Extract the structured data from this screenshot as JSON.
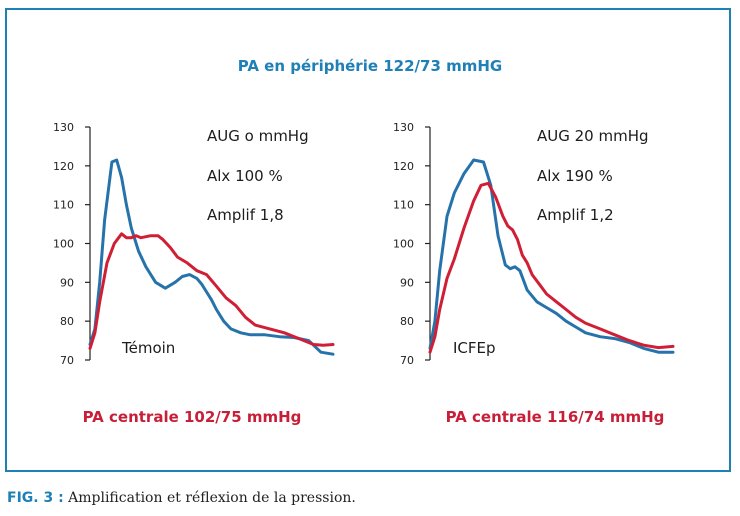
{
  "figure_title": "PA en périphérie 122/73 mmHG",
  "caption": {
    "fig_label": "FIG. 3 :",
    "text": "Amplification et réflexion de la pression."
  },
  "colors": {
    "frame": "#1f7fb7",
    "peripheral": "#2673ac",
    "central": "#d01f35"
  },
  "chart_data": [
    {
      "type": "line",
      "ylim": [
        70,
        130
      ],
      "yticks": [
        70,
        80,
        90,
        100,
        110,
        120,
        130
      ],
      "xlim": [
        0,
        100
      ],
      "annotations": [
        "AUG o mmHg",
        "Alx 100 %",
        "Amplif 1,8"
      ],
      "label": "Témoin",
      "bottom_label": "PA centrale 102/75 mmHg",
      "series": [
        {
          "key": "peripheral",
          "x": [
            0,
            2,
            4,
            6,
            9,
            11,
            13,
            15,
            17,
            20,
            23,
            27,
            31,
            35,
            38,
            41,
            44,
            46,
            48,
            50,
            52,
            55,
            58,
            62,
            66,
            72,
            78,
            84,
            90,
            95,
            100
          ],
          "y": [
            74,
            78,
            90,
            106,
            121,
            121.5,
            117,
            110,
            104,
            98,
            94,
            90,
            88.5,
            90,
            91.5,
            92,
            91,
            89.5,
            87.5,
            85.5,
            83,
            80,
            78,
            77,
            76.5,
            76.5,
            76,
            75.8,
            75,
            72,
            71.5
          ]
        },
        {
          "key": "central",
          "x": [
            0,
            2,
            4,
            7,
            10,
            13,
            15,
            17,
            19,
            21,
            25,
            28,
            30,
            33,
            36,
            40,
            44,
            48,
            52,
            56,
            60,
            64,
            68,
            74,
            80,
            86,
            92,
            96,
            100
          ],
          "y": [
            73,
            77,
            85,
            95,
            100,
            102.5,
            101.5,
            101.5,
            102,
            101.5,
            102,
            102,
            101,
            99,
            96.5,
            95,
            93,
            92,
            89,
            86,
            84,
            81,
            79,
            78,
            77,
            75.5,
            74,
            73.8,
            74
          ]
        }
      ]
    },
    {
      "type": "line",
      "ylim": [
        70,
        130
      ],
      "yticks": [
        70,
        80,
        90,
        100,
        110,
        120,
        130
      ],
      "xlim": [
        0,
        100
      ],
      "annotations": [
        "AUG 20 mmHg",
        "Alx 190 %",
        "Amplif 1,2"
      ],
      "label": "ICFEp",
      "bottom_label": "PA centrale 116/74 mmHg",
      "series": [
        {
          "key": "peripheral",
          "x": [
            0,
            2,
            4,
            7,
            10,
            14,
            18,
            22,
            25,
            28,
            31,
            33,
            35,
            37,
            40,
            44,
            48,
            52,
            56,
            60,
            64,
            70,
            76,
            82,
            88,
            94,
            100
          ],
          "y": [
            73,
            80,
            93,
            107,
            113,
            118,
            121.5,
            121,
            115,
            102,
            94.5,
            93.5,
            94,
            93,
            88,
            85,
            83.5,
            82,
            80,
            78.5,
            77,
            76,
            75.5,
            74.5,
            73,
            72,
            72
          ]
        },
        {
          "key": "central",
          "x": [
            0,
            2,
            4,
            7,
            10,
            14,
            18,
            21,
            24,
            27,
            30,
            32,
            34,
            36,
            38,
            40,
            42,
            45,
            48,
            52,
            56,
            60,
            64,
            70,
            76,
            82,
            88,
            94,
            100
          ],
          "y": [
            72,
            76,
            83,
            91,
            96,
            104,
            111,
            115,
            115.5,
            112,
            107,
            104.5,
            103.5,
            101,
            97,
            95,
            92,
            89.5,
            87,
            85,
            83,
            81,
            79.5,
            78,
            76.5,
            75,
            73.8,
            73.2,
            73.5
          ]
        }
      ]
    }
  ]
}
